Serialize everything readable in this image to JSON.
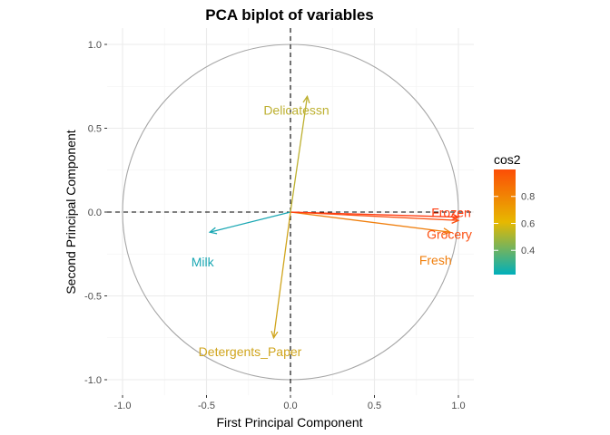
{
  "chart_data": {
    "type": "scatter",
    "title": "PCA biplot of variables",
    "xlabel": "First Principal Component",
    "ylabel": "Second Principal Component",
    "xlim": [
      -1.1,
      1.1
    ],
    "ylim": [
      -1.06,
      1.06
    ],
    "x_ticks": [
      -1.0,
      -0.5,
      0.0,
      0.5,
      1.0
    ],
    "y_ticks": [
      -1.0,
      -0.5,
      0.0,
      0.5,
      1.0
    ],
    "x_tick_labels": [
      "-1.0",
      "-0.5",
      "0.0",
      "0.5",
      "1.0"
    ],
    "y_tick_labels": [
      "-1.0",
      "-0.5",
      "0.0",
      "0.5",
      "1.0"
    ],
    "grid": true,
    "unit_circle": true,
    "variables": [
      {
        "name": "Fresh",
        "x": 0.95,
        "y": -0.12,
        "cos2": 0.92,
        "color": "#f07f0e"
      },
      {
        "name": "Milk",
        "x": -0.48,
        "y": -0.12,
        "cos2": 0.25,
        "color": "#1aa7b3"
      },
      {
        "name": "Grocery",
        "x": 1.0,
        "y": -0.05,
        "cos2": 0.99,
        "color": "#fc4f10"
      },
      {
        "name": "Frozen",
        "x": 1.0,
        "y": -0.03,
        "cos2": 1.0,
        "color": "#ff3d12"
      },
      {
        "name": "Detergents_Paper",
        "x": -0.1,
        "y": -0.75,
        "cos2": 0.57,
        "color": "#d0a51e"
      },
      {
        "name": "Delicatessn",
        "x": 0.1,
        "y": 0.69,
        "cos2": 0.48,
        "color": "#bdb030"
      }
    ],
    "legend": {
      "title": "cos2",
      "position": "right",
      "ticks": [
        "0.4",
        "0.6",
        "0.8"
      ],
      "tick_values": [
        0.4,
        0.6,
        0.8
      ],
      "range": [
        0.22,
        1.0
      ],
      "colors": [
        "#00afbb",
        "#e7b800",
        "#fc4e07"
      ]
    }
  }
}
